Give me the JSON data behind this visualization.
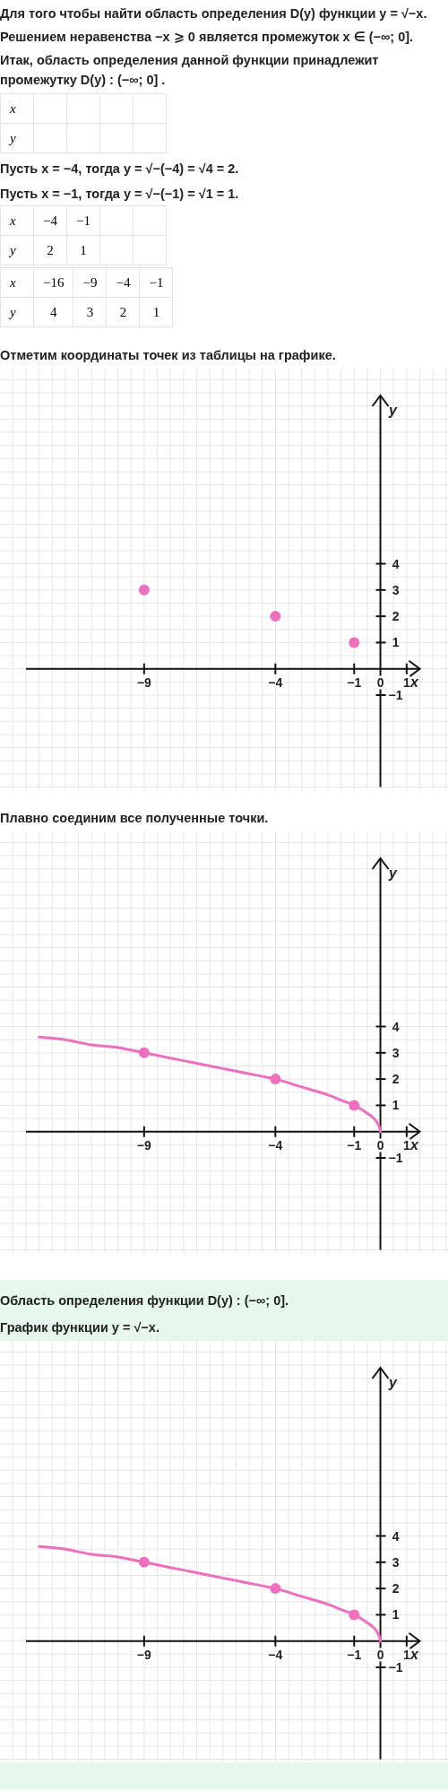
{
  "chart_data": [
    {
      "type": "other",
      "annotations": [
        "Для того чтобы найти область определения D(y) функции y = √−x.",
        "Решением неравенства −x ⩾ 0 является промежуток x ∈ (−∞; 0].",
        "Итак, область определения данной функции принадлежит промежутку D(y) : (−∞; 0] ."
      ]
    },
    {
      "type": "other",
      "xlabel": "x",
      "ylabel": "y",
      "categories": [
        null,
        null,
        null,
        null
      ],
      "values": [
        null,
        null,
        null,
        null
      ],
      "annotations": [
        "Пусть x = −4, тогда y = √−(−4) = √4 = 2.",
        "Пусть x = −1, тогда y = √−(−1) = √1 = 1."
      ]
    },
    {
      "type": "other",
      "xlabel": "x",
      "ylabel": "y",
      "categories": [
        "−4",
        "−1",
        null,
        null
      ],
      "values": [
        2,
        1,
        null,
        null
      ],
      "data_labels": true
    },
    {
      "type": "other",
      "xlabel": "x",
      "ylabel": "y",
      "categories": [
        "−16",
        "−9",
        "−4",
        "−1"
      ],
      "values": [
        4,
        3,
        2,
        1
      ],
      "data_labels": true
    },
    {
      "type": "scatter",
      "title": "Отметим координаты точек из таблицы на графике.",
      "xlabel": "x",
      "ylabel": "y",
      "xlim": [
        -13.5,
        1.5
      ],
      "ylim": [
        -4.5,
        10.4
      ],
      "xticks": [
        -9,
        -4,
        -1,
        0,
        1
      ],
      "yticks": [
        -1,
        1,
        2,
        3,
        4
      ],
      "grid": true,
      "series": [
        {
          "color": "#ef6fbf",
          "x": [
            -9,
            -4,
            -1
          ],
          "values": [
            3,
            2,
            1
          ]
        }
      ]
    },
    {
      "type": "line",
      "title": "Плавно соединим все полученные точки.",
      "xlabel": "x",
      "ylabel": "y",
      "xlim": [
        -13.5,
        1.5
      ],
      "ylim": [
        -4.5,
        10.4
      ],
      "xticks": [
        -9,
        -4,
        -1,
        0,
        1
      ],
      "yticks": [
        -1,
        1,
        2,
        3,
        4
      ],
      "grid": true,
      "series": [
        {
          "type": "line",
          "color": "#ef6fbf",
          "x": [
            -13,
            -12,
            -11,
            -10,
            -9,
            -8,
            -7,
            -6,
            -5,
            -4,
            -3,
            -2,
            -1.5,
            -1,
            -0.5,
            -0.25,
            -0.1,
            -0.02,
            0
          ],
          "values": [
            3.6,
            3.5,
            3.3,
            3.2,
            3,
            2.8,
            2.6,
            2.4,
            2.2,
            2,
            1.7,
            1.4,
            1.2,
            1,
            0.7,
            0.5,
            0.3,
            0.1,
            0
          ]
        },
        {
          "type": "scatter",
          "color": "#ef6fbf",
          "x": [
            -9,
            -4,
            -1
          ],
          "values": [
            3,
            2,
            1
          ]
        }
      ]
    },
    {
      "type": "line",
      "title": "Область определения функции D(y) : (−∞; 0].",
      "subtitle": "График функции y = √−x.",
      "xlabel": "x",
      "ylabel": "y",
      "xlim": [
        -13.5,
        1.5
      ],
      "ylim": [
        -4.5,
        10.4
      ],
      "xticks": [
        -9,
        -4,
        -1,
        0,
        1
      ],
      "yticks": [
        -1,
        1,
        2,
        3,
        4
      ],
      "grid": true,
      "series": [
        {
          "type": "line",
          "color": "#ef6fbf",
          "x": [
            -13,
            -12,
            -11,
            -10,
            -9,
            -8,
            -7,
            -6,
            -5,
            -4,
            -3,
            -2,
            -1.5,
            -1,
            -0.5,
            -0.25,
            -0.1,
            -0.02,
            0
          ],
          "values": [
            3.6,
            3.5,
            3.3,
            3.2,
            3,
            2.8,
            2.6,
            2.4,
            2.2,
            2,
            1.7,
            1.4,
            1.2,
            1,
            0.7,
            0.5,
            0.3,
            0.1,
            0
          ]
        },
        {
          "type": "scatter",
          "color": "#ef6fbf",
          "x": [
            -9,
            -4,
            -1
          ],
          "values": [
            3,
            2,
            1
          ]
        }
      ]
    }
  ]
}
